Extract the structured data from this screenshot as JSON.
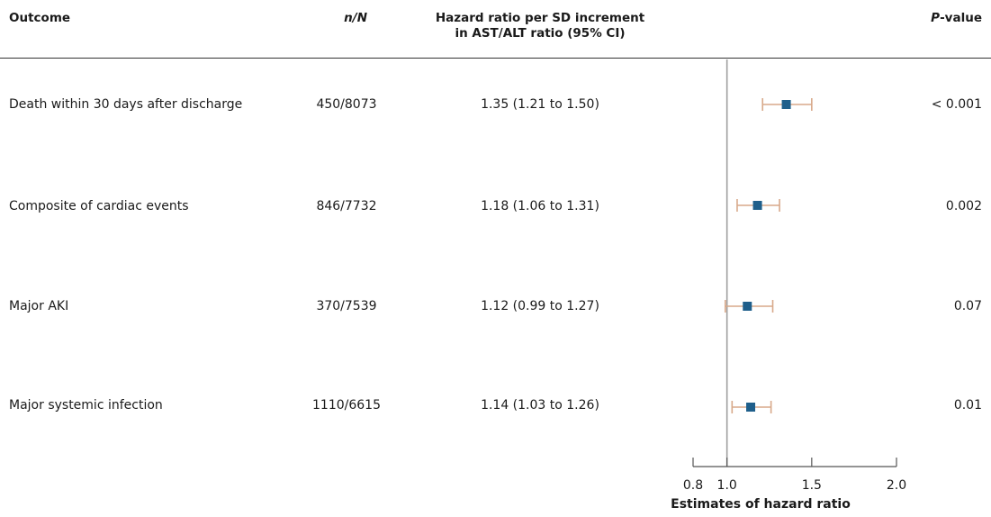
{
  "header": {
    "outcome": "Outcome",
    "n_n": "n/N",
    "hr_line1": "Hazard ratio per SD increment",
    "hr_line2": "in AST/ALT ratio (95% CI)",
    "p_italic": "P",
    "p_rest": "-value"
  },
  "rows": [
    {
      "outcome": "Death within 30 days after discharge",
      "n_n": "450/8073",
      "hr_text": "1.35 (1.21 to 1.50)",
      "p": "< 0.001"
    },
    {
      "outcome": "Composite of cardiac events",
      "n_n": "846/7732",
      "hr_text": "1.18 (1.06 to 1.31)",
      "p": "0.002"
    },
    {
      "outcome": "Major AKI",
      "n_n": "370/7539",
      "hr_text": "1.12 (0.99 to 1.27)",
      "p": "0.07"
    },
    {
      "outcome": "Major systemic infection",
      "n_n": "1110/6615",
      "hr_text": "1.14 (1.03 to 1.26)",
      "p": "0.01"
    }
  ],
  "chart_data": {
    "type": "forest",
    "categories": [
      "Death within 30 days after discharge",
      "Composite of cardiac events",
      "Major AKI",
      "Major systemic infection"
    ],
    "estimates": [
      1.35,
      1.18,
      1.12,
      1.14
    ],
    "ci_lower": [
      1.21,
      1.06,
      0.99,
      1.03
    ],
    "ci_upper": [
      1.5,
      1.31,
      1.27,
      1.26
    ],
    "reference_line": 1.0,
    "xlim": [
      0.8,
      2.0
    ],
    "xticks": [
      0.8,
      1.0,
      1.5,
      2.0
    ],
    "xtick_labels": [
      "0.8",
      "1.0",
      "1.5",
      "2.0"
    ],
    "xlabel": "Estimates of hazard ratio",
    "colors": {
      "marker": "#1f5f8b",
      "ci": "#d8a98a",
      "reference": "#a0a0a0",
      "axis": "#555555"
    }
  }
}
